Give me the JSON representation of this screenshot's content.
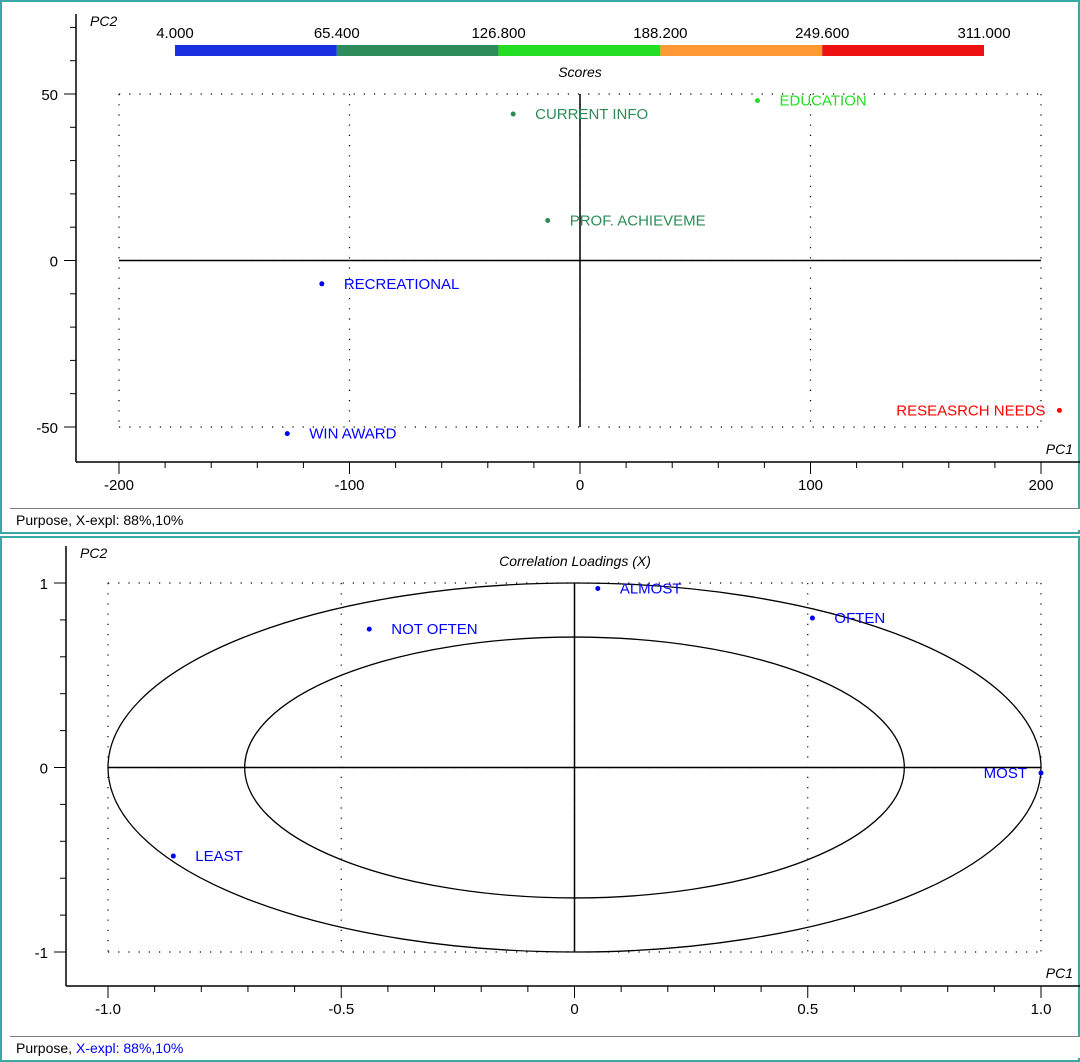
{
  "colors": {
    "frame": "#3aa9a6",
    "scale": [
      "#1a2fe0",
      "#2e8b5a",
      "#22dd22",
      "#ff9933",
      "#ee1111"
    ],
    "points": {
      "blue": "#0000ff",
      "teal": "#2e8b57",
      "green": "#22dd22",
      "red": "#ff0000"
    }
  },
  "scores_panel": {
    "status": "Purpose, X-expl: 88%,10%",
    "color_scale_labels": [
      "4.000",
      "65.400",
      "126.800",
      "188.200",
      "249.600",
      "311.000"
    ]
  },
  "loadings_panel": {
    "status_prefix": "Purpose, ",
    "status_highlight": "X-expl: 88%,10%"
  },
  "chart_data": [
    {
      "type": "scatter",
      "title": "Scores",
      "xlabel": "PC1",
      "ylabel": "PC2",
      "xlim": [
        -200,
        200
      ],
      "ylim": [
        -50,
        50
      ],
      "xticks": [
        -200,
        -100,
        0,
        100,
        200
      ],
      "xtick_labels": [
        "-200",
        "-100",
        "0",
        "100",
        "200"
      ],
      "yticks": [
        50,
        0,
        -50
      ],
      "ytick_labels": [
        "50",
        "0",
        "-50"
      ],
      "grid": "dotted",
      "points": [
        {
          "label": "CURRENT INFO",
          "x": -29,
          "y": 44,
          "color": "teal"
        },
        {
          "label": "EDUCATION",
          "x": 77,
          "y": 48,
          "color": "green"
        },
        {
          "label": "PROF. ACHIEVEME",
          "x": -14,
          "y": 12,
          "color": "teal"
        },
        {
          "label": "RECREATIONAL",
          "x": -112,
          "y": -7,
          "color": "blue"
        },
        {
          "label": "WIN AWARD",
          "x": -127,
          "y": -52,
          "color": "blue"
        },
        {
          "label": "RESEASRCH NEEDS",
          "x": 208,
          "y": -45,
          "color": "red"
        }
      ]
    },
    {
      "type": "scatter",
      "title": "Correlation Loadings (X)",
      "xlabel": "PC1",
      "ylabel": "PC2",
      "xlim": [
        -1,
        1
      ],
      "ylim": [
        -1,
        1
      ],
      "xticks": [
        -1.0,
        -0.5,
        0,
        0.5,
        1.0
      ],
      "xtick_labels": [
        "-1.0",
        "-0.5",
        "0",
        "0.5",
        "1.0"
      ],
      "yticks": [
        1,
        0,
        -1
      ],
      "ytick_labels": [
        "1",
        "0",
        "-1"
      ],
      "grid": "dotted",
      "circles": [
        1.0,
        0.707
      ],
      "points": [
        {
          "label": "ALMOST",
          "x": 0.05,
          "y": 0.97,
          "color": "blue"
        },
        {
          "label": "NOT OFTEN",
          "x": -0.44,
          "y": 0.75,
          "color": "blue"
        },
        {
          "label": "OFTEN",
          "x": 0.51,
          "y": 0.81,
          "color": "blue"
        },
        {
          "label": "MOST",
          "x": 1.0,
          "y": -0.03,
          "color": "blue"
        },
        {
          "label": "LEAST",
          "x": -0.86,
          "y": -0.48,
          "color": "blue"
        }
      ]
    }
  ]
}
